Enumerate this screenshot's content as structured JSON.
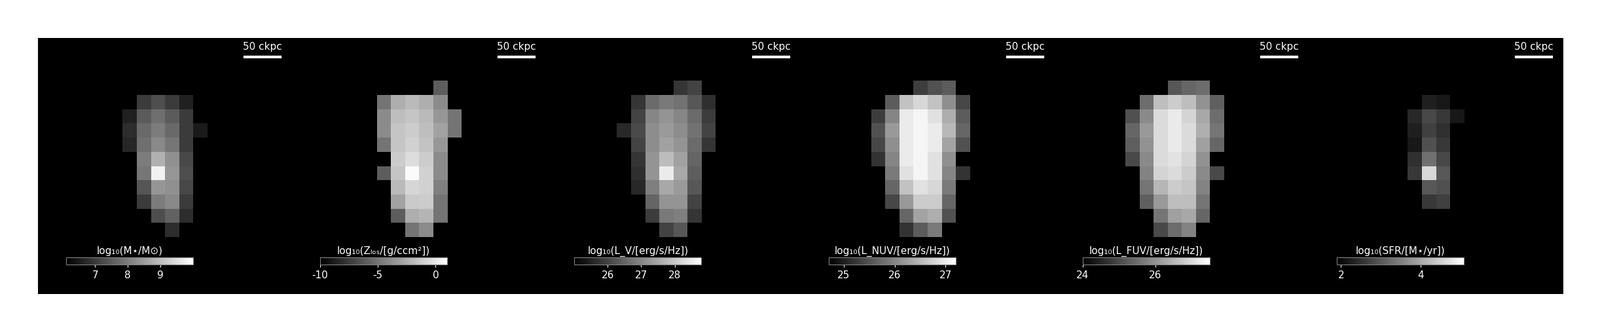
{
  "chart_data": [
    {
      "type": "heatmap",
      "colorbar_label": "log₁₀(M⋆/M⊙)",
      "scale_bar_label": "50 ckpc",
      "scale_bar_length": 50,
      "xlim": [
        0,
        360
      ],
      "ylim": [
        0,
        360
      ],
      "tick_labels": false,
      "x": [
        110,
        130,
        150,
        170,
        190,
        210,
        230
      ],
      "y": [
        290,
        270,
        250,
        230,
        210,
        190,
        170,
        150,
        130,
        110,
        90
      ],
      "cells": [
        [
          null,
          null,
          null,
          null,
          null,
          null,
          null
        ],
        [
          null,
          null,
          7.0,
          7.3,
          7.0,
          6.6,
          null
        ],
        [
          null,
          6.6,
          7.5,
          7.8,
          7.5,
          7.0,
          null
        ],
        [
          null,
          6.8,
          7.7,
          8.0,
          7.7,
          7.0,
          6.5
        ],
        [
          null,
          6.7,
          7.8,
          8.2,
          7.9,
          7.0,
          null
        ],
        [
          null,
          null,
          8.0,
          8.8,
          8.3,
          7.2,
          null
        ],
        [
          null,
          null,
          7.9,
          9.8,
          8.4,
          7.3,
          null
        ],
        [
          null,
          null,
          7.4,
          8.4,
          8.3,
          7.2,
          null
        ],
        [
          null,
          null,
          7.0,
          8.0,
          8.2,
          7.0,
          null
        ],
        [
          null,
          null,
          null,
          7.3,
          7.6,
          6.8,
          null
        ],
        [
          null,
          null,
          null,
          null,
          6.8,
          null,
          null
        ]
      ],
      "colorbar_range": [
        6.1,
        10.0
      ],
      "colorbar_ticks": [
        7,
        8,
        9
      ]
    },
    {
      "type": "heatmap",
      "colorbar_label": "log₁₀(Zₗₒₛ/[g/ccm²])",
      "scale_bar_label": "50 ckpc",
      "scale_bar_length": 50,
      "xlim": [
        0,
        360
      ],
      "ylim": [
        0,
        360
      ],
      "tick_labels": false,
      "x": [
        110,
        130,
        150,
        170,
        190,
        210,
        230
      ],
      "y": [
        290,
        270,
        250,
        230,
        210,
        190,
        170,
        150,
        130,
        110,
        90
      ],
      "cells": [
        [
          null,
          null,
          null,
          null,
          null,
          -6,
          null
        ],
        [
          null,
          -5,
          -2.5,
          -2,
          -2.5,
          -4,
          null
        ],
        [
          null,
          -4,
          -1.8,
          -1.5,
          -2,
          -3.5,
          -5
        ],
        [
          null,
          -4,
          -1.5,
          -1.2,
          -1.8,
          -3,
          -5
        ],
        [
          null,
          -5,
          -1.5,
          -1.0,
          -1.6,
          -3.5,
          null
        ],
        [
          null,
          null,
          -1.2,
          -0.5,
          -1.2,
          -4,
          null
        ],
        [
          null,
          -6,
          -1.5,
          0.8,
          -1.0,
          -4,
          null
        ],
        [
          null,
          null,
          -2,
          -0.8,
          -1.0,
          -4.5,
          null
        ],
        [
          null,
          null,
          -3,
          -1.3,
          -1.2,
          -5,
          null
        ],
        [
          null,
          null,
          -6,
          -2.5,
          -2.2,
          -5,
          null
        ],
        [
          null,
          null,
          null,
          -5,
          -4,
          null,
          null
        ]
      ],
      "colorbar_range": [
        -10,
        1
      ],
      "colorbar_ticks": [
        -10,
        -5,
        0
      ]
    },
    {
      "type": "heatmap",
      "colorbar_label": "log₁₀(L_V/[erg/s/Hz])",
      "scale_bar_label": "50 ckpc",
      "scale_bar_length": 50,
      "xlim": [
        0,
        360
      ],
      "ylim": [
        0,
        360
      ],
      "tick_labels": false,
      "x": [
        110,
        130,
        150,
        170,
        190,
        210,
        230
      ],
      "y": [
        290,
        270,
        250,
        230,
        210,
        190,
        170,
        150,
        130,
        110,
        90
      ],
      "cells": [
        [
          null,
          null,
          null,
          null,
          25.8,
          26.0,
          null
        ],
        [
          null,
          25.8,
          26.6,
          26.8,
          26.7,
          26.3,
          25.7
        ],
        [
          null,
          26.0,
          27.0,
          27.2,
          27.0,
          26.6,
          25.9
        ],
        [
          25.6,
          26.1,
          27.1,
          27.3,
          27.1,
          26.7,
          26.0
        ],
        [
          null,
          26.0,
          27.1,
          27.4,
          27.2,
          26.6,
          25.8
        ],
        [
          null,
          25.8,
          27.2,
          27.8,
          27.4,
          26.5,
          null
        ],
        [
          null,
          25.7,
          27.2,
          28.5,
          27.5,
          26.4,
          null
        ],
        [
          null,
          25.6,
          26.9,
          27.5,
          27.3,
          26.3,
          null
        ],
        [
          null,
          null,
          26.5,
          27.2,
          27.2,
          26.0,
          null
        ],
        [
          null,
          null,
          25.9,
          26.8,
          26.9,
          25.8,
          null
        ],
        [
          null,
          null,
          null,
          26.0,
          26.3,
          null,
          null
        ]
      ],
      "colorbar_range": [
        25.0,
        28.8
      ],
      "colorbar_ticks": [
        26,
        27,
        28
      ]
    },
    {
      "type": "heatmap",
      "colorbar_label": "log₁₀(L_NUV/[erg/s/Hz])",
      "scale_bar_label": "50 ckpc",
      "scale_bar_length": 50,
      "xlim": [
        0,
        360
      ],
      "ylim": [
        0,
        360
      ],
      "tick_labels": false,
      "x": [
        110,
        130,
        150,
        170,
        190,
        210,
        230
      ],
      "y": [
        290,
        270,
        250,
        230,
        210,
        190,
        170,
        150,
        130,
        110,
        90
      ],
      "cells": [
        [
          null,
          null,
          null,
          25.3,
          25.5,
          25.6,
          null
        ],
        [
          null,
          25.6,
          26.6,
          26.8,
          26.6,
          26.1,
          25.4
        ],
        [
          25.3,
          26.0,
          27.0,
          27.1,
          26.9,
          26.4,
          25.6
        ],
        [
          25.5,
          26.2,
          27.0,
          27.1,
          27.0,
          26.5,
          25.7
        ],
        [
          25.4,
          26.1,
          27.0,
          27.1,
          27.0,
          26.3,
          25.5
        ],
        [
          25.2,
          26.0,
          27.0,
          27.1,
          26.9,
          26.1,
          null
        ],
        [
          null,
          25.9,
          26.9,
          27.1,
          26.9,
          26.0,
          25.2
        ],
        [
          null,
          25.7,
          26.6,
          26.9,
          26.8,
          25.9,
          null
        ],
        [
          null,
          25.4,
          26.2,
          26.7,
          26.7,
          25.7,
          null
        ],
        [
          null,
          null,
          25.7,
          26.3,
          26.4,
          25.5,
          null
        ],
        [
          null,
          null,
          25.2,
          25.6,
          25.9,
          null,
          null
        ]
      ],
      "colorbar_range": [
        24.7,
        27.2
      ],
      "colorbar_ticks": [
        25,
        26,
        27
      ]
    },
    {
      "type": "heatmap",
      "colorbar_label": "log₁₀(L_FUV/[erg/s/Hz])",
      "scale_bar_label": "50 ckpc",
      "scale_bar_length": 50,
      "xlim": [
        0,
        360
      ],
      "ylim": [
        0,
        360
      ],
      "tick_labels": false,
      "x": [
        110,
        130,
        150,
        170,
        190,
        210,
        230
      ],
      "y": [
        290,
        270,
        250,
        230,
        210,
        190,
        170,
        150,
        130,
        110,
        90
      ],
      "cells": [
        [
          null,
          null,
          null,
          25.2,
          25.4,
          25.5,
          null
        ],
        [
          null,
          25.5,
          26.6,
          26.8,
          26.6,
          26.0,
          25.3
        ],
        [
          25.1,
          25.9,
          27.0,
          27.2,
          26.9,
          26.3,
          25.5
        ],
        [
          25.4,
          26.1,
          27.0,
          27.2,
          27.0,
          26.4,
          25.6
        ],
        [
          25.3,
          26.0,
          27.0,
          27.2,
          27.0,
          26.2,
          25.4
        ],
        [
          25.0,
          25.9,
          27.0,
          27.1,
          26.9,
          26.0,
          null
        ],
        [
          null,
          25.8,
          26.9,
          27.0,
          26.8,
          25.9,
          25.0
        ],
        [
          null,
          25.6,
          26.5,
          26.8,
          26.7,
          25.8,
          null
        ],
        [
          null,
          25.3,
          26.1,
          26.6,
          26.6,
          25.6,
          null
        ],
        [
          null,
          null,
          25.6,
          26.2,
          26.3,
          25.4,
          null
        ],
        [
          null,
          null,
          25.0,
          25.5,
          25.8,
          null,
          null
        ]
      ],
      "colorbar_range": [
        24.0,
        27.5
      ],
      "colorbar_ticks": [
        24,
        26
      ]
    },
    {
      "type": "heatmap",
      "colorbar_label": "log₁₀(SFR/[M⋆/yr])",
      "scale_bar_label": "50 ckpc",
      "scale_bar_length": 50,
      "xlim": [
        0,
        360
      ],
      "ylim": [
        0,
        360
      ],
      "tick_labels": false,
      "x": [
        110,
        130,
        150,
        170,
        190,
        210,
        230
      ],
      "y": [
        290,
        270,
        250,
        230,
        210,
        190,
        170,
        150,
        130,
        110,
        90
      ],
      "cells": [
        [
          null,
          null,
          null,
          null,
          null,
          null,
          null
        ],
        [
          null,
          null,
          null,
          2.3,
          2.2,
          null,
          null
        ],
        [
          null,
          null,
          2.4,
          2.8,
          2.6,
          2.2,
          null
        ],
        [
          null,
          null,
          2.3,
          2.7,
          2.5,
          null,
          null
        ],
        [
          null,
          null,
          2.2,
          2.9,
          2.6,
          null,
          null
        ],
        [
          null,
          null,
          2.5,
          3.3,
          2.8,
          null,
          null
        ],
        [
          null,
          null,
          2.6,
          4.6,
          3.0,
          null,
          null
        ],
        [
          null,
          null,
          null,
          3.0,
          2.9,
          null,
          null
        ],
        [
          null,
          null,
          null,
          2.6,
          2.7,
          null,
          null
        ],
        [
          null,
          null,
          null,
          null,
          null,
          null,
          null
        ],
        [
          null,
          null,
          null,
          null,
          null,
          null,
          null
        ]
      ],
      "colorbar_range": [
        1.9,
        5.1
      ],
      "colorbar_ticks": [
        2,
        4
      ]
    }
  ]
}
